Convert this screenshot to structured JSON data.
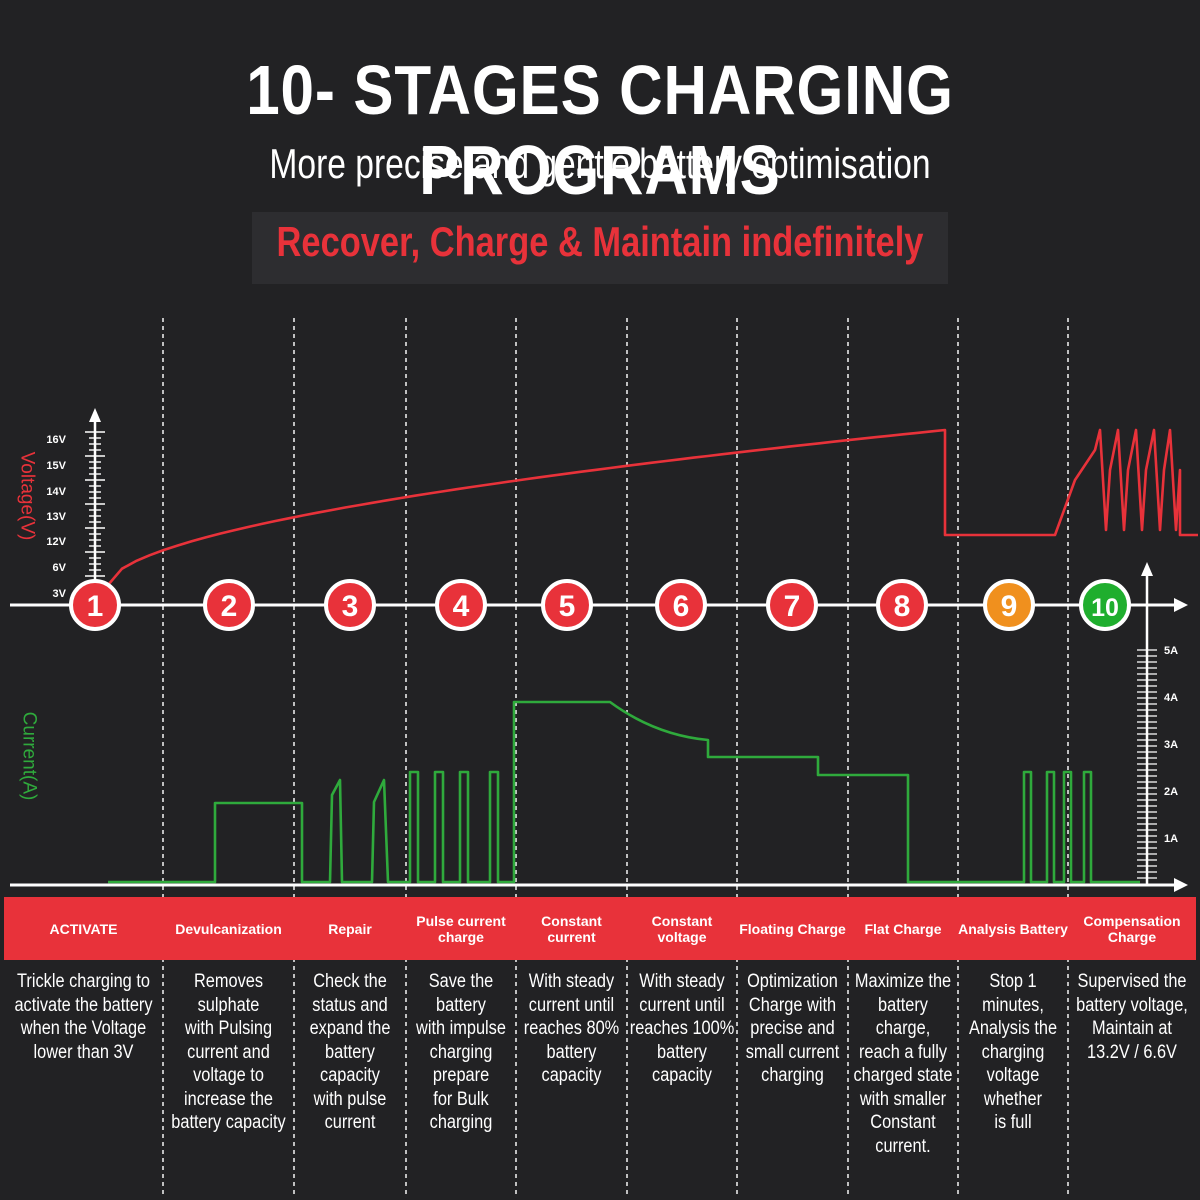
{
  "header": {
    "title": "10- STAGES CHARGING PROGRAMS",
    "subtitle": "More precise and gentle battery optimisation",
    "tagline": "Recover, Charge & Maintain indefinitely"
  },
  "axes": {
    "voltage_label": "Voltage(V)",
    "current_label": "Current(A)",
    "voltage_ticks": [
      "16V",
      "15V",
      "14V",
      "13V",
      "12V",
      "6V",
      "3V"
    ],
    "current_ticks": [
      "5A",
      "4A",
      "3A",
      "2A",
      "1A"
    ]
  },
  "colors": {
    "background": "#222224",
    "voltage_line": "#e8323a",
    "current_line": "#2faa3c",
    "stage_red": "#e8323a",
    "stage_orange": "#f0901e",
    "stage_green": "#1fae2e",
    "band": "#e8323a"
  },
  "stages": [
    {
      "num": "1",
      "name": "ACTIVATE",
      "color": "#e8323a",
      "desc": [
        "Trickle charging to",
        "activate the battery",
        "when the Voltage",
        "lower than 3V"
      ]
    },
    {
      "num": "2",
      "name": "Devulcanization",
      "color": "#e8323a",
      "desc": [
        "Removes sulphate",
        "with  Pulsing",
        "current and",
        "voltage to",
        "increase the",
        "battery capacity"
      ]
    },
    {
      "num": "3",
      "name": "Repair",
      "color": "#e8323a",
      "desc": [
        "Check the",
        "status and",
        "expand the",
        "battery capacity",
        "with pulse",
        "current"
      ]
    },
    {
      "num": "4",
      "name": "Pulse current charge",
      "color": "#e8323a",
      "desc": [
        "Save the battery",
        "with impulse",
        "charging prepare",
        "for Bulk",
        "charging"
      ]
    },
    {
      "num": "5",
      "name": "Constant current",
      "color": "#e8323a",
      "desc": [
        "With steady",
        "current until",
        "reaches 80%",
        "battery capacity"
      ]
    },
    {
      "num": "6",
      "name": "Constant voltage",
      "color": "#e8323a",
      "desc": [
        "With steady",
        "current until",
        "reaches 100%",
        "battery capacity"
      ]
    },
    {
      "num": "7",
      "name": "Floating Charge",
      "color": "#e8323a",
      "desc": [
        "Optimization",
        "Charge with",
        "precise and",
        "small current",
        "charging"
      ]
    },
    {
      "num": "8",
      "name": "Flat Charge",
      "color": "#e8323a",
      "desc": [
        "Maximize the",
        "battery charge,",
        "reach a fully",
        "charged state",
        "with smaller",
        "Constant",
        "current."
      ]
    },
    {
      "num": "9",
      "name": "Analysis Battery",
      "color": "#f0901e",
      "desc": [
        "Stop 1 minutes,",
        "Analysis the",
        "charging",
        "voltage whether",
        "is full"
      ]
    },
    {
      "num": "10",
      "name": "Compensation Charge",
      "color": "#1fae2e",
      "desc": [
        "Supervised the",
        "battery voltage,",
        "Maintain at",
        "13.2V / 6.6V"
      ]
    }
  ]
}
